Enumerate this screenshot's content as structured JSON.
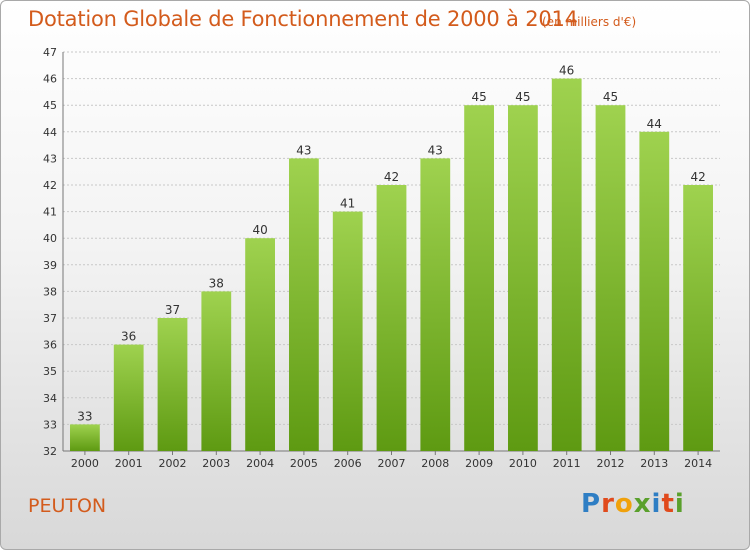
{
  "header": {
    "title": "Dotation Globale de Fonctionnement de 2000 à 2014",
    "unit": "(en milliers d'€)"
  },
  "footer": {
    "commune": "PEUTON",
    "logo_text": "Proxiti"
  },
  "colors": {
    "title": "#d35b1c",
    "bar_top": "#9fd24f",
    "bar_bottom": "#5e9a12",
    "grid": "#c8c8c8"
  },
  "chart_data": {
    "type": "bar",
    "title": "Dotation Globale de Fonctionnement de 2000 à 2014",
    "xlabel": "",
    "ylabel": "",
    "categories": [
      "2000",
      "2001",
      "2002",
      "2003",
      "2004",
      "2005",
      "2006",
      "2007",
      "2008",
      "2009",
      "2010",
      "2011",
      "2012",
      "2013",
      "2014"
    ],
    "values": [
      33,
      36,
      37,
      38,
      40,
      43,
      41,
      42,
      43,
      45,
      45,
      46,
      45,
      44,
      42
    ],
    "ylim": [
      32,
      47
    ],
    "yticks": [
      32,
      33,
      34,
      35,
      36,
      37,
      38,
      39,
      40,
      41,
      42,
      43,
      44,
      45,
      46,
      47
    ],
    "grid": true,
    "data_labels": true
  }
}
